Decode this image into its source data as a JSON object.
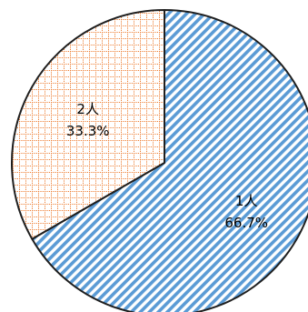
{
  "chart_data": {
    "type": "pie",
    "start_position": "top",
    "direction": "clockwise",
    "slices": [
      {
        "label": "1人",
        "percent_label": "66.7%",
        "value": 66.7,
        "pattern": "diagonal-stripes",
        "color": "#5b9bd5"
      },
      {
        "label": "2人",
        "percent_label": "33.3%",
        "value": 33.3,
        "pattern": "dotted-grid",
        "color": "#ed7d31"
      }
    ],
    "outline_color": "#1f1f1f"
  }
}
